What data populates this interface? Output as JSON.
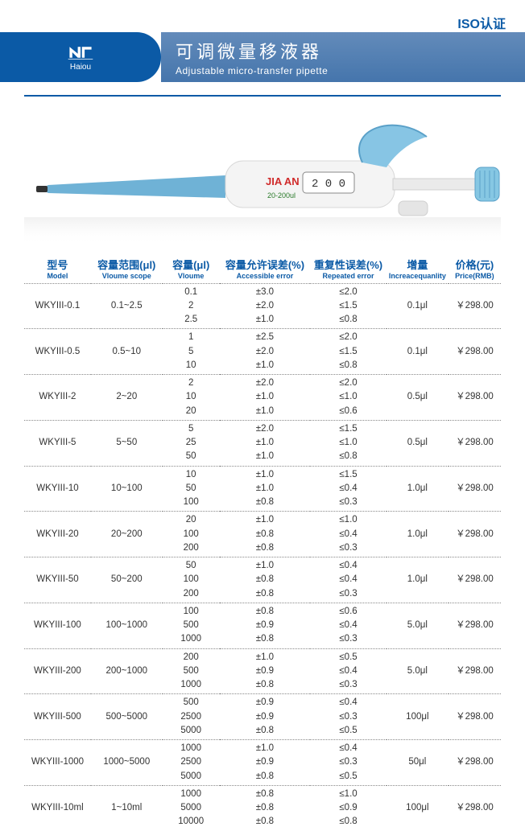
{
  "iso_text": "ISO认证",
  "brand": {
    "name": "Haiou"
  },
  "title": {
    "cn": "可调微量移液器",
    "en": "Adjustable micro-transfer pipette"
  },
  "colors": {
    "brand_blue": "#0b5aa6",
    "band_top": "#638bba",
    "band_bottom": "#4575ac",
    "text": "#333333",
    "dotted": "#888888"
  },
  "pipette": {
    "label": "JIA AN",
    "range_text": "20-200ul",
    "display_value": "2 0 0",
    "tip_color": "#6fb2d6",
    "body_color": "#f4f4f4",
    "knob_color": "#86c7e3",
    "squeeze_color": "#87c5e4"
  },
  "table": {
    "headers": [
      {
        "cn": "型号",
        "en": "Model"
      },
      {
        "cn": "容量范围(μl)",
        "en": "Vloume scope"
      },
      {
        "cn": "容量(μl)",
        "en": "Vloume"
      },
      {
        "cn": "容量允许误差(%)",
        "en": "Accessible error"
      },
      {
        "cn": "重复性误差(%)",
        "en": "Repeated error"
      },
      {
        "cn": "增量",
        "en": "Increacequanlity"
      },
      {
        "cn": "价格(元)",
        "en": "Price(RMB)"
      }
    ],
    "rows": [
      {
        "model": "WKYIII-0.1",
        "scope": "0.1~2.5",
        "volume": "0.1\n2\n2.5",
        "aerr": "±3.0\n±2.0\n±1.0",
        "rerr": "≤2.0\n≤1.5\n≤0.8",
        "incr": "0.1μl",
        "price": "￥298.00"
      },
      {
        "model": "WKYIII-0.5",
        "scope": "0.5~10",
        "volume": "1\n5\n10",
        "aerr": "±2.5\n±2.0\n±1.0",
        "rerr": "≤2.0\n≤1.5\n≤0.8",
        "incr": "0.1μl",
        "price": "￥298.00"
      },
      {
        "model": "WKYIII-2",
        "scope": "2~20",
        "volume": "2\n10\n20",
        "aerr": "±2.0\n±1.0\n±1.0",
        "rerr": "≤2.0\n≤1.0\n≤0.6",
        "incr": "0.5μl",
        "price": "￥298.00"
      },
      {
        "model": "WKYIII-5",
        "scope": "5~50",
        "volume": "5\n25\n50",
        "aerr": "±2.0\n±1.0\n±1.0",
        "rerr": "≤1.5\n≤1.0\n≤0.8",
        "incr": "0.5μl",
        "price": "￥298.00"
      },
      {
        "model": "WKYIII-10",
        "scope": "10~100",
        "volume": "10\n50\n100",
        "aerr": "±1.0\n±1.0\n±0.8",
        "rerr": "≤1.5\n≤0.4\n≤0.3",
        "incr": "1.0μl",
        "price": "￥298.00"
      },
      {
        "model": "WKYIII-20",
        "scope": "20~200",
        "volume": "20\n100\n200",
        "aerr": "±1.0\n±0.8\n±0.8",
        "rerr": "≤1.0\n≤0.4\n≤0.3",
        "incr": "1.0μl",
        "price": "￥298.00"
      },
      {
        "model": "WKYIII-50",
        "scope": "50~200",
        "volume": "50\n100\n200",
        "aerr": "±1.0\n±0.8\n±0.8",
        "rerr": "≤0.4\n≤0.4\n≤0.3",
        "incr": "1.0μl",
        "price": "￥298.00"
      },
      {
        "model": "WKYIII-100",
        "scope": "100~1000",
        "volume": "100\n500\n1000",
        "aerr": "±0.8\n±0.9\n±0.8",
        "rerr": "≤0.6\n≤0.4\n≤0.3",
        "incr": "5.0μl",
        "price": "￥298.00"
      },
      {
        "model": "WKYIII-200",
        "scope": "200~1000",
        "volume": "200\n500\n1000",
        "aerr": "±1.0\n±0.9\n±0.8",
        "rerr": "≤0.5\n≤0.4\n≤0.3",
        "incr": "5.0μl",
        "price": "￥298.00"
      },
      {
        "model": "WKYIII-500",
        "scope": "500~5000",
        "volume": "500\n2500\n5000",
        "aerr": "±0.9\n±0.9\n±0.8",
        "rerr": "≤0.4\n≤0.3\n≤0.5",
        "incr": "100μl",
        "price": "￥298.00"
      },
      {
        "model": "WKYIII-1000",
        "scope": "1000~5000",
        "volume": "1000\n2500\n5000",
        "aerr": "±1.0\n±0.9\n±0.8",
        "rerr": "≤0.4\n≤0.3\n≤0.5",
        "incr": "50μl",
        "price": "￥298.00"
      },
      {
        "model": "WKYIII-10ml",
        "scope": "1~10ml",
        "volume": "1000\n5000\n10000",
        "aerr": "±0.8\n±0.8\n±0.8",
        "rerr": "≤1.0\n≤0.9\n≤0.8",
        "incr": "100μl",
        "price": "￥298.00"
      }
    ]
  }
}
